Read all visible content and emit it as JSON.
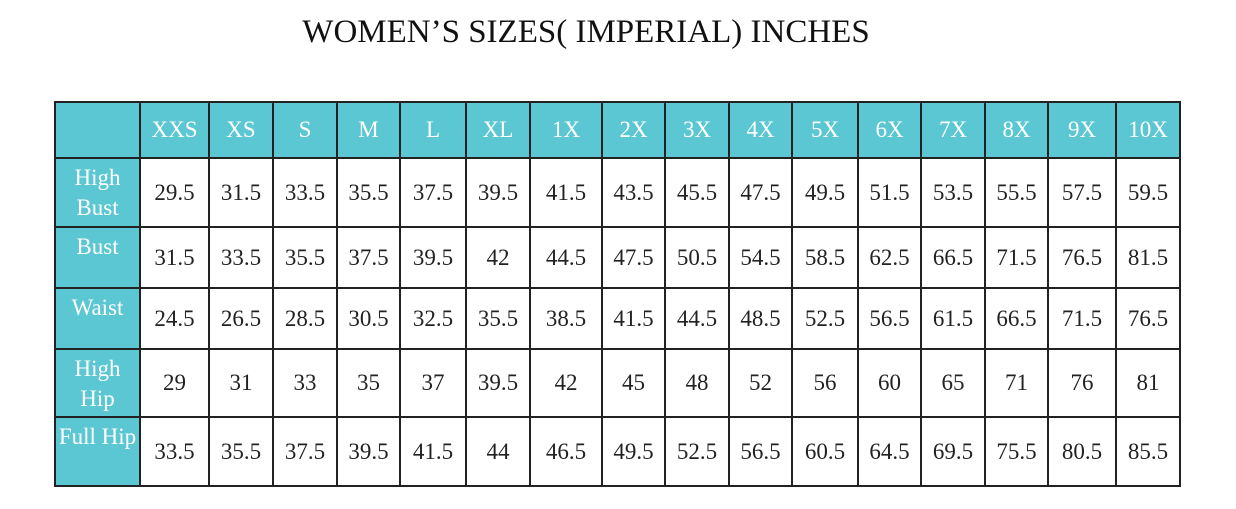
{
  "title": "WOMEN’S SIZES( IMPERIAL) INCHES",
  "table": {
    "columns": [
      "XXS",
      "XS",
      "S",
      "M",
      "L",
      "XL",
      "1X",
      "2X",
      "3X",
      "4X",
      "5X",
      "6X",
      "7X",
      "8X",
      "9X",
      "10X"
    ],
    "rows": [
      {
        "label": "High Bust",
        "values": [
          29.5,
          31.5,
          33.5,
          35.5,
          37.5,
          39.5,
          41.5,
          43.5,
          45.5,
          47.5,
          49.5,
          51.5,
          53.5,
          55.5,
          57.5,
          59.5
        ]
      },
      {
        "label": "Bust",
        "values": [
          31.5,
          33.5,
          35.5,
          37.5,
          39.5,
          42,
          44.5,
          47.5,
          50.5,
          54.5,
          58.5,
          62.5,
          66.5,
          71.5,
          76.5,
          81.5
        ]
      },
      {
        "label": "Waist",
        "values": [
          24.5,
          26.5,
          28.5,
          30.5,
          32.5,
          35.5,
          38.5,
          41.5,
          44.5,
          48.5,
          52.5,
          56.5,
          61.5,
          66.5,
          71.5,
          76.5
        ]
      },
      {
        "label": "High Hip",
        "values": [
          29,
          31,
          33,
          35,
          37,
          39.5,
          42,
          45,
          48,
          52,
          56,
          60,
          65,
          71,
          76,
          81
        ]
      },
      {
        "label": "Full Hip",
        "values": [
          33.5,
          35.5,
          37.5,
          39.5,
          41.5,
          44,
          46.5,
          49.5,
          52.5,
          56.5,
          60.5,
          64.5,
          69.5,
          75.5,
          80.5,
          85.5
        ]
      }
    ]
  }
}
